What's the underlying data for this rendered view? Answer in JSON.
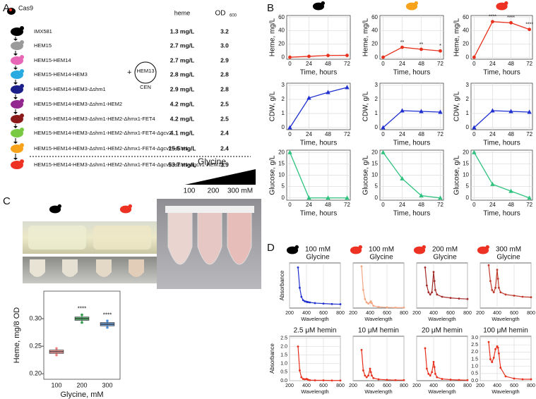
{
  "panel_labels": [
    "A",
    "B",
    "C",
    "D"
  ],
  "panel_a": {
    "cas9": "Cas9",
    "headers": {
      "heme": "heme",
      "od": "OD",
      "od_sub": "600"
    },
    "plasmid": {
      "plus": "+",
      "name": "HEM13",
      "marker": "CEN"
    },
    "rows": [
      {
        "name": "IMX581",
        "heme": "1.3 mg/L",
        "od": "3.2",
        "color": "#000000"
      },
      {
        "name": "HEM15",
        "heme": "2.7 mg/L",
        "od": "3.0",
        "color": "#9a9a9a"
      },
      {
        "name": "HEM15-HEM14",
        "heme": "2.7 mg/L",
        "od": "2.9",
        "color": "#e766b5"
      },
      {
        "name": "HEM15-HEM14-HEM3",
        "heme": "2.8 mg/L",
        "od": "2.8",
        "color": "#29abe2"
      },
      {
        "name": "HEM15-HEM14-HEM3-Δshm1",
        "heme": "2.9 mg/L",
        "od": "2.8",
        "color": "#1b1f8a"
      },
      {
        "name": "HEM15-HEM14-HEM3-Δshm1-HEM2",
        "heme": "4.2 mg/L",
        "od": "2.5",
        "color": "#93278f"
      },
      {
        "name": "HEM15-HEM14-HEM3-Δshm1-HEM2-Δhmx1-FET4",
        "heme": "4.2 mg/L",
        "od": "2.5",
        "color": "#8b1a1a"
      },
      {
        "name": "HEM15-HEM14-HEM3-Δshm1-HEM2-Δhmx1-FET4-Δgcv2",
        "heme": "4.1 mg/L",
        "od": "2.4",
        "color": "#7ac943"
      },
      {
        "name": "HEM15-HEM14-HEM3-Δshm1-HEM2-Δhmx1-FET4-Δgcv2-HEM1",
        "heme": "15.5 mg/L",
        "od": "2.4",
        "color": "#f7a21b"
      },
      {
        "name": "HEM15-HEM14-HEM3-Δshm1-HEM2-Δhmx1-FET4-Δgcv2-HEM1-Δgcv1-HEM13",
        "heme": "53.7 mg/L",
        "od": "1.9",
        "color": "#ed3224"
      }
    ]
  },
  "panel_c": {
    "glycine": "Glycine",
    "levels": [
      "100",
      "200",
      "300 mM"
    ],
    "strain_colors": [
      "#000000",
      "#ed3224"
    ]
  },
  "chart_data": [
    {
      "type": "line",
      "ylabel": "Heme, mg/L",
      "xlabel": "Time, hours",
      "strain_color": "#000000",
      "marker": "circle",
      "grid": true,
      "x": [
        0,
        24,
        48,
        72
      ],
      "xlim": [
        -4,
        76
      ],
      "xticks": [
        0,
        24,
        48,
        72
      ],
      "ylim": [
        -3,
        63
      ],
      "yticks": [
        0,
        20,
        40,
        60
      ],
      "series": [
        {
          "color": "#e8301c",
          "values": [
            0,
            1.3,
            2.7,
            2.8
          ]
        }
      ]
    },
    {
      "type": "line",
      "ylabel": "Heme, mg/L",
      "xlabel": "Time, hours",
      "strain_color": "#f7a21b",
      "marker": "circle",
      "grid": true,
      "x": [
        0,
        24,
        48,
        72
      ],
      "xlim": [
        -4,
        76
      ],
      "xticks": [
        0,
        24,
        48,
        72
      ],
      "ylim": [
        -3,
        63
      ],
      "yticks": [
        0,
        20,
        40,
        60
      ],
      "series": [
        {
          "color": "#e8301c",
          "values": [
            0,
            15,
            12,
            9.5
          ]
        }
      ],
      "annotations": [
        {
          "x": 24,
          "label": "**"
        },
        {
          "x": 48,
          "label": "**"
        },
        {
          "x": 72,
          "label": "*"
        }
      ]
    },
    {
      "type": "line",
      "ylabel": "Heme, mg/L",
      "xlabel": "Time, hours",
      "strain_color": "#ed3224",
      "marker": "circle",
      "grid": true,
      "x": [
        0,
        24,
        48,
        72
      ],
      "xlim": [
        -4,
        76
      ],
      "xticks": [
        0,
        24,
        48,
        72
      ],
      "ylim": [
        -3,
        63
      ],
      "yticks": [
        0,
        20,
        40,
        60
      ],
      "series": [
        {
          "color": "#e8301c",
          "values": [
            0,
            53.7,
            52,
            42
          ]
        }
      ],
      "annotations": [
        {
          "x": 24,
          "label": "****"
        },
        {
          "x": 48,
          "label": "****"
        },
        {
          "x": 72,
          "label": "****"
        }
      ]
    },
    {
      "type": "line",
      "ylabel": "CDW, g/L",
      "xlabel": "Time, hours",
      "marker": "triangle",
      "grid": true,
      "x": [
        0,
        24,
        48,
        72
      ],
      "xlim": [
        -4,
        76
      ],
      "xticks": [
        0,
        24,
        48,
        72
      ],
      "ylim": [
        -0.15,
        3.15
      ],
      "yticks": [
        0,
        1,
        2,
        3
      ],
      "series": [
        {
          "color": "#1f2fd0",
          "values": [
            0,
            2.1,
            2.5,
            2.85
          ]
        }
      ]
    },
    {
      "type": "line",
      "ylabel": "CDW, g/L",
      "xlabel": "Time, hours",
      "marker": "triangle",
      "grid": true,
      "x": [
        0,
        24,
        48,
        72
      ],
      "xlim": [
        -4,
        76
      ],
      "xticks": [
        0,
        24,
        48,
        72
      ],
      "ylim": [
        -0.15,
        3.15
      ],
      "yticks": [
        0,
        1,
        2,
        3
      ],
      "series": [
        {
          "color": "#1f2fd0",
          "values": [
            0,
            1.2,
            1.15,
            1.1
          ]
        }
      ]
    },
    {
      "type": "line",
      "ylabel": "CDW, g/L",
      "xlabel": "Time, hours",
      "marker": "triangle",
      "grid": true,
      "x": [
        0,
        24,
        48,
        72
      ],
      "xlim": [
        -4,
        76
      ],
      "xticks": [
        0,
        24,
        48,
        72
      ],
      "ylim": [
        -0.15,
        3.15
      ],
      "yticks": [
        0,
        1,
        2,
        3
      ],
      "series": [
        {
          "color": "#1f2fd0",
          "values": [
            0,
            1.2,
            1.15,
            1.1
          ]
        }
      ]
    },
    {
      "type": "line",
      "ylabel": "Glucose, g/L",
      "xlabel": "Time, hours",
      "marker": "triangle",
      "grid": true,
      "x": [
        0,
        24,
        48,
        72
      ],
      "xlim": [
        -4,
        76
      ],
      "xticks": [
        0,
        24,
        48,
        72
      ],
      "ylim": [
        -1,
        21
      ],
      "yticks": [
        0,
        5,
        10,
        15,
        20
      ],
      "series": [
        {
          "color": "#2ec27e",
          "values": [
            20,
            0,
            0,
            0
          ]
        }
      ]
    },
    {
      "type": "line",
      "ylabel": "Glucose, g/L",
      "xlabel": "Time, hours",
      "marker": "triangle",
      "grid": true,
      "x": [
        0,
        24,
        48,
        72
      ],
      "xlim": [
        -4,
        76
      ],
      "xticks": [
        0,
        24,
        48,
        72
      ],
      "ylim": [
        -1,
        21
      ],
      "yticks": [
        0,
        5,
        10,
        15,
        20
      ],
      "series": [
        {
          "color": "#2ec27e",
          "values": [
            20,
            8.5,
            1,
            0
          ]
        }
      ]
    },
    {
      "type": "line",
      "ylabel": "Glucose, g/L",
      "xlabel": "Time, hours",
      "marker": "triangle",
      "grid": true,
      "x": [
        0,
        24,
        48,
        72
      ],
      "xlim": [
        -4,
        76
      ],
      "xticks": [
        0,
        24,
        48,
        72
      ],
      "ylim": [
        -1,
        21
      ],
      "yticks": [
        0,
        5,
        10,
        15,
        20
      ],
      "series": [
        {
          "color": "#2ec27e",
          "values": [
            20,
            6,
            3,
            0
          ]
        }
      ]
    },
    {
      "type": "box",
      "ylabel": "Heme, mg/8 OD",
      "xlabel": "Glycine, mM",
      "categories": [
        "100",
        "200",
        "300"
      ],
      "ylim": [
        0.19,
        0.35
      ],
      "yticks": [
        {
          "value": 0.2,
          "label": "0.20"
        },
        {
          "value": 0.25,
          "label": "0.25"
        },
        {
          "value": 0.3,
          "label": "0.30"
        }
      ],
      "boxes": [
        {
          "min": 0.234,
          "q1": 0.237,
          "median": 0.24,
          "q3": 0.243,
          "max": 0.246,
          "color": "#f08080"
        },
        {
          "min": 0.293,
          "q1": 0.297,
          "median": 0.3,
          "q3": 0.303,
          "max": 0.307,
          "color": "#2e9e4a"
        },
        {
          "min": 0.284,
          "q1": 0.287,
          "median": 0.29,
          "q3": 0.293,
          "max": 0.296,
          "color": "#4f8fdc"
        }
      ],
      "annotations": [
        {
          "category": "200",
          "label": "****"
        },
        {
          "category": "300",
          "label": "****"
        }
      ]
    },
    {
      "type": "scatter",
      "title_lines": [
        "100 mM",
        "Glycine"
      ],
      "strain_color": "#000000",
      "ylabel": "Absorbance",
      "xlabel": "Wavelength",
      "grid": true,
      "xlim": [
        200,
        800
      ],
      "xticks": [
        200,
        400,
        600,
        800
      ],
      "ylim": [
        0,
        2
      ],
      "x": [
        300,
        320,
        340,
        360,
        380,
        400,
        410,
        420,
        440,
        500,
        600,
        700,
        800
      ],
      "series": [
        {
          "color": "#1f2fd0",
          "values": [
            1.8,
            0.9,
            0.5,
            0.35,
            0.3,
            0.28,
            0.27,
            0.26,
            0.25,
            0.22,
            0.2,
            0.18,
            0.17
          ]
        }
      ]
    },
    {
      "type": "scatter",
      "title_lines": [
        "100 mM",
        "Glycine"
      ],
      "strain_color": "#ed3224",
      "xlabel": "Wavelength",
      "grid": true,
      "xlim": [
        200,
        800
      ],
      "xticks": [
        200,
        400,
        600,
        800
      ],
      "ylim": [
        0,
        2
      ],
      "x": [
        300,
        320,
        340,
        360,
        380,
        400,
        410,
        420,
        440,
        500,
        600,
        700,
        800
      ],
      "series": [
        {
          "color": "#f4a582",
          "values": [
            1.85,
            0.8,
            0.4,
            0.25,
            0.2,
            0.25,
            0.3,
            0.22,
            0.1,
            0.05,
            0.03,
            0.02,
            0.02
          ]
        }
      ]
    },
    {
      "type": "scatter",
      "title_lines": [
        "200 mM",
        "Glycine"
      ],
      "strain_color": "#ed3224",
      "xlabel": "Wavelength",
      "grid": true,
      "xlim": [
        200,
        800
      ],
      "xticks": [
        200,
        400,
        600,
        800
      ],
      "ylim": [
        0,
        2
      ],
      "x": [
        300,
        320,
        340,
        360,
        380,
        400,
        410,
        420,
        440,
        500,
        600,
        700,
        800
      ],
      "series": [
        {
          "color": "#a52a2a",
          "values": [
            1.8,
            1.0,
            0.7,
            0.6,
            0.7,
            1.6,
            1.2,
            0.8,
            0.6,
            0.5,
            0.45,
            0.42,
            0.4
          ]
        }
      ]
    },
    {
      "type": "scatter",
      "title_lines": [
        "300 mM",
        "Glycine"
      ],
      "strain_color": "#ed3224",
      "xlabel": "Wavelength",
      "grid": true,
      "xlim": [
        200,
        800
      ],
      "xticks": [
        200,
        400,
        600,
        800
      ],
      "ylim": [
        0,
        2
      ],
      "x": [
        300,
        320,
        340,
        360,
        380,
        400,
        410,
        420,
        440,
        500,
        600,
        700,
        800
      ],
      "series": [
        {
          "color": "#c0392b",
          "values": [
            1.9,
            1.2,
            0.8,
            0.7,
            0.9,
            1.7,
            1.3,
            0.9,
            0.7,
            0.6,
            0.55,
            0.5,
            0.48
          ]
        }
      ]
    },
    {
      "type": "scatter",
      "title_lines": [
        "2.5 μM hemin"
      ],
      "ylabel": "Absorbance",
      "xlabel": "Wavelength",
      "grid": true,
      "xlim": [
        200,
        800
      ],
      "xticks": [
        200,
        400,
        600,
        800
      ],
      "ylim": [
        0,
        2.6
      ],
      "yticks": [
        {
          "value": 0,
          "label": "0.0"
        },
        0.5,
        {
          "value": 1,
          "label": "1.0"
        },
        1.5,
        {
          "value": 2,
          "label": "2.0"
        },
        2.5
      ],
      "x": [
        300,
        320,
        340,
        360,
        380,
        400,
        410,
        420,
        440,
        500,
        600,
        700,
        800
      ],
      "series": [
        {
          "color": "#e8301c",
          "values": [
            2.0,
            0.6,
            0.2,
            0.1,
            0.08,
            0.1,
            0.08,
            0.05,
            0.03,
            0.02,
            0.02,
            0.01,
            0.01
          ]
        }
      ]
    },
    {
      "type": "scatter",
      "title_lines": [
        "10 μM hemin"
      ],
      "xlabel": "Wavelength",
      "grid": true,
      "xlim": [
        200,
        800
      ],
      "xticks": [
        200,
        400,
        600,
        800
      ],
      "ylim": [
        0,
        2.6
      ],
      "x": [
        300,
        320,
        340,
        360,
        380,
        400,
        410,
        420,
        440,
        500,
        600,
        700,
        800
      ],
      "series": [
        {
          "color": "#e8301c",
          "values": [
            1.8,
            0.6,
            0.3,
            0.2,
            0.3,
            0.7,
            0.5,
            0.3,
            0.15,
            0.08,
            0.05,
            0.03,
            0.03
          ]
        }
      ]
    },
    {
      "type": "scatter",
      "title_lines": [
        "20 μM hemin"
      ],
      "xlabel": "Wavelength",
      "grid": true,
      "xlim": [
        200,
        800
      ],
      "xticks": [
        200,
        400,
        600,
        800
      ],
      "ylim": [
        0,
        2.6
      ],
      "x": [
        300,
        320,
        340,
        360,
        380,
        400,
        410,
        420,
        440,
        500,
        600,
        700,
        800
      ],
      "series": [
        {
          "color": "#e8301c",
          "values": [
            1.9,
            0.7,
            0.4,
            0.3,
            0.5,
            1.1,
            0.8,
            0.4,
            0.2,
            0.1,
            0.06,
            0.04,
            0.03
          ]
        }
      ]
    },
    {
      "type": "scatter",
      "title_lines": [
        "100 μM hemin"
      ],
      "xlabel": "Wavelength",
      "grid": true,
      "xlim": [
        200,
        800
      ],
      "xticks": [
        200,
        400,
        600,
        800
      ],
      "ylim": [
        0,
        3.1
      ],
      "yticks": [
        {
          "value": 0,
          "label": "0.0"
        },
        0.5,
        {
          "value": 1,
          "label": "1.0"
        },
        1.5,
        {
          "value": 2,
          "label": "2.0"
        },
        2.5,
        {
          "value": 3,
          "label": "3.0"
        }
      ],
      "x": [
        300,
        320,
        340,
        360,
        380,
        400,
        410,
        420,
        440,
        500,
        600,
        700,
        800
      ],
      "series": [
        {
          "color": "#e8301c",
          "values": [
            2.7,
            1.5,
            1.3,
            1.6,
            2.2,
            2.4,
            2.3,
            1.9,
            0.9,
            0.3,
            0.15,
            0.1,
            0.1
          ]
        }
      ]
    }
  ]
}
